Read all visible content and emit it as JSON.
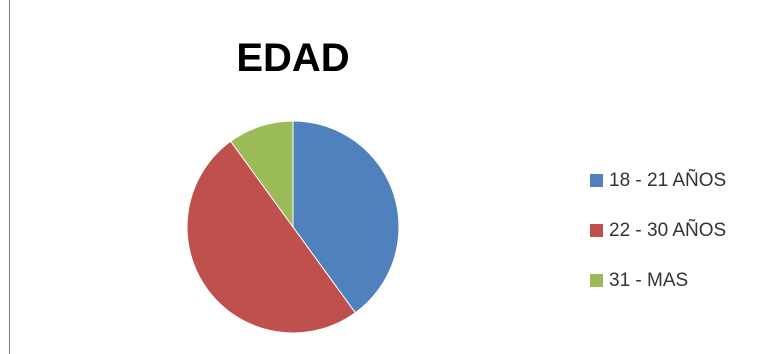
{
  "chart_data": {
    "type": "pie",
    "title": "EDAD",
    "categories": [
      "18 - 21 AÑOS",
      "22 - 30 AÑOS",
      "31 - MAS"
    ],
    "values": [
      40,
      50,
      10
    ],
    "colors": [
      "#4f81bd",
      "#c0504d",
      "#9bbb59"
    ],
    "start_angle_deg": 0,
    "legend_position": "right"
  }
}
